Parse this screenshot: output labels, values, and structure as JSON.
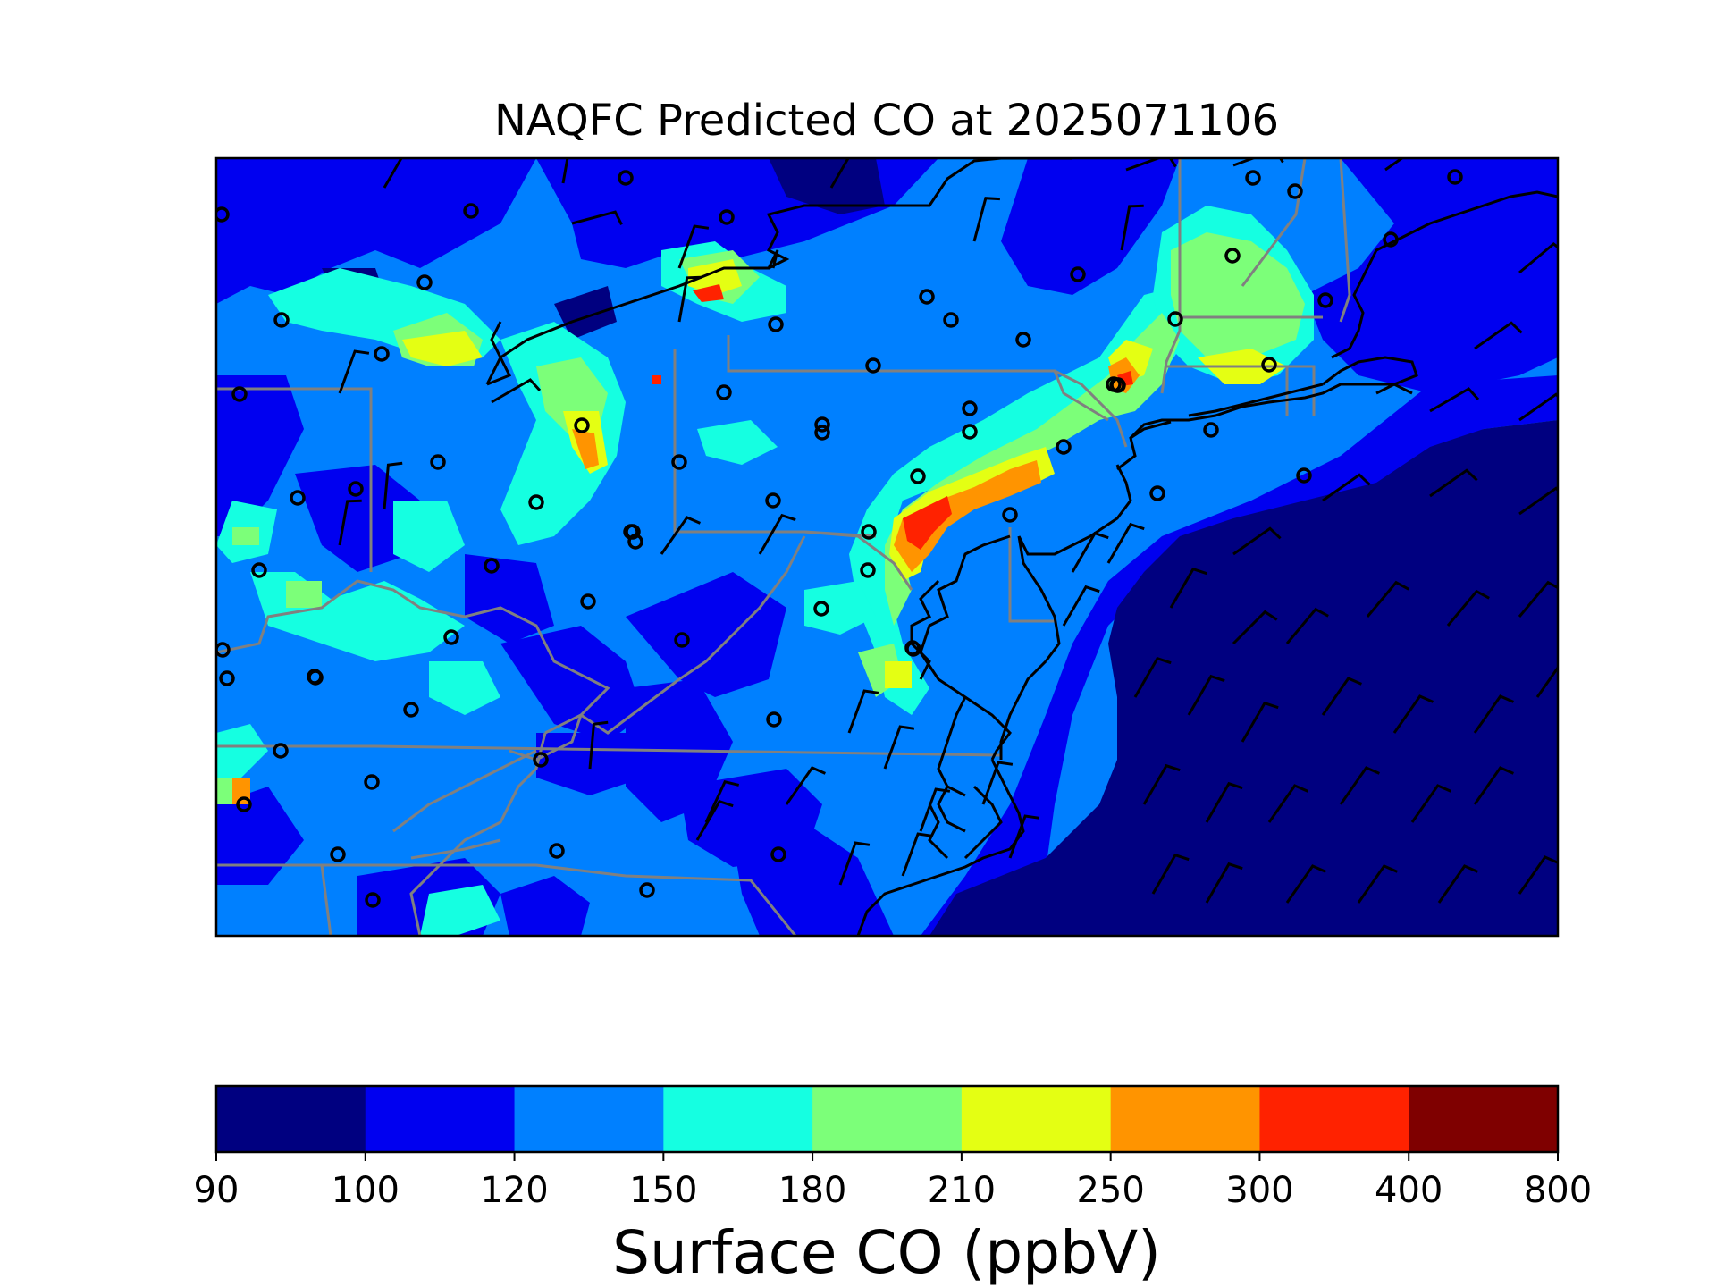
{
  "title": "NAQFC Predicted CO at 2025071106",
  "colorbar": {
    "label": "Surface CO (ppbV)",
    "ticks": [
      "90",
      "100",
      "120",
      "150",
      "180",
      "210",
      "250",
      "300",
      "400",
      "800"
    ],
    "colors": [
      "#000080",
      "#0000f0",
      "#0080ff",
      "#15ffe1",
      "#7cff79",
      "#e4ff13",
      "#ff9400",
      "#ff2200",
      "#7f0000"
    ]
  },
  "map": {
    "ocean_color": "#000080",
    "land_base_color": "#0080ff",
    "coastline_color": "#000000",
    "state_border_color": "#808080",
    "site_marker": "open-circle",
    "wind_symbol": "wind-barb"
  }
}
